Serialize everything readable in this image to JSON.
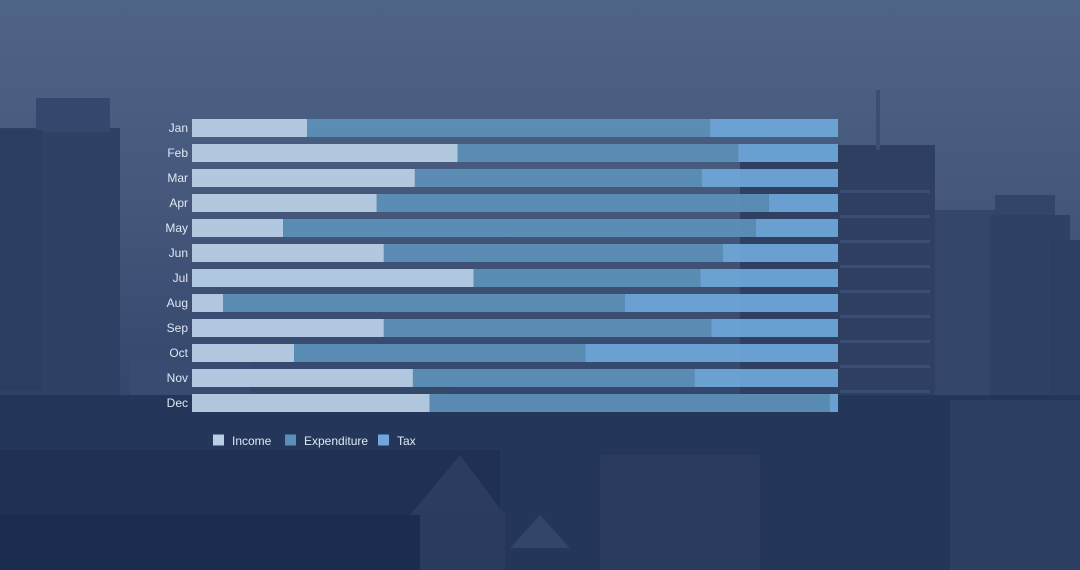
{
  "chart_data": {
    "type": "bar",
    "orientation": "horizontal",
    "stacked": true,
    "normalized": true,
    "categories": [
      "Jan",
      "Feb",
      "Mar",
      "Apr",
      "May",
      "Jun",
      "Jul",
      "Aug",
      "Sep",
      "Oct",
      "Nov",
      "Dec"
    ],
    "series": [
      {
        "name": "Income",
        "color": "#b8cfe6",
        "values": [
          17.8,
          41.1,
          34.5,
          28.6,
          14.1,
          29.7,
          43.6,
          4.8,
          29.7,
          15.8,
          34.2,
          36.8
        ]
      },
      {
        "name": "Expenditure",
        "color": "#5c90b8",
        "values": [
          62.4,
          43.5,
          44.4,
          60.7,
          73.2,
          52.5,
          35.1,
          62.2,
          50.7,
          45.1,
          43.6,
          61.9
        ]
      },
      {
        "name": "Tax",
        "color": "#6ea7d8",
        "values": [
          19.8,
          15.4,
          21.1,
          10.7,
          12.7,
          17.8,
          21.3,
          33.0,
          19.6,
          39.1,
          22.2,
          1.3
        ]
      }
    ],
    "title": "",
    "xlabel": "",
    "ylabel": "",
    "xlim": [
      0,
      100
    ],
    "grid": false,
    "legend_position": "bottom-left"
  }
}
